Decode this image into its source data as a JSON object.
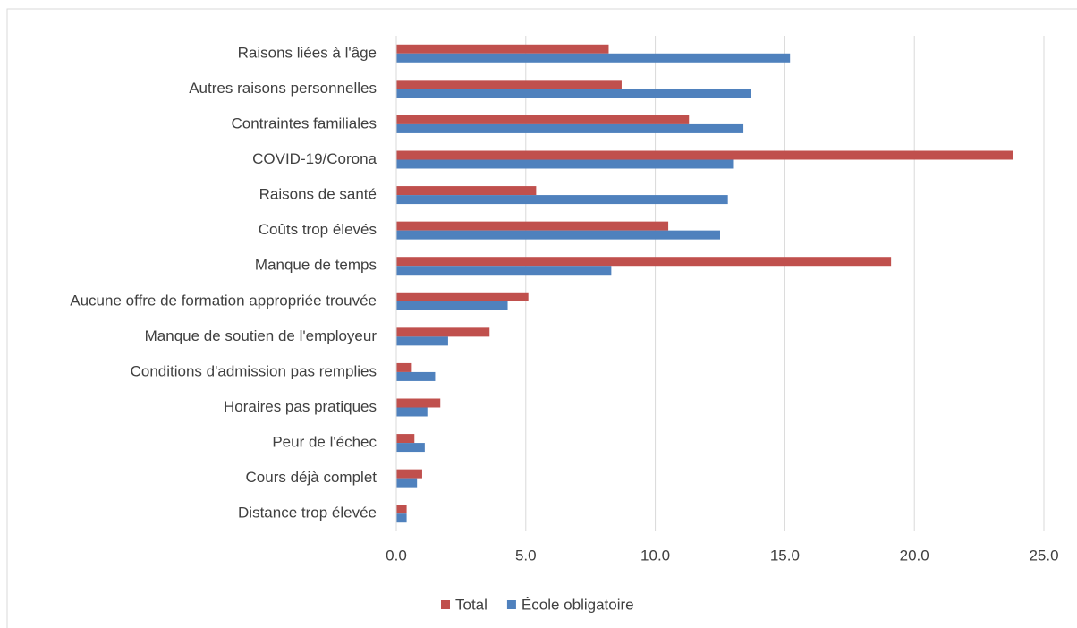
{
  "chart_data": {
    "type": "hbar",
    "categories": [
      "Raisons liées à l'âge",
      "Autres raisons personnelles",
      "Contraintes familiales",
      "COVID-19/Corona",
      "Raisons de santé",
      "Coûts trop élevés",
      "Manque de temps",
      "Aucune offre de formation appropriée trouvée",
      "Manque de soutien de l'employeur",
      "Conditions d'admission pas remplies",
      "Horaires pas pratiques",
      "Peur de l'échec",
      "Cours déjà complet",
      "Distance trop élevée"
    ],
    "series": [
      {
        "name": "Total",
        "color": "#c0504d",
        "values": [
          8.2,
          8.7,
          11.3,
          23.8,
          5.4,
          10.5,
          19.1,
          5.1,
          3.6,
          0.6,
          1.7,
          0.7,
          1.0,
          0.4
        ]
      },
      {
        "name": "École obligatoire",
        "color": "#4f81bd",
        "values": [
          15.2,
          13.7,
          13.4,
          13.0,
          12.8,
          12.5,
          8.3,
          4.3,
          2.0,
          1.5,
          1.2,
          1.1,
          0.8,
          0.4
        ]
      }
    ],
    "xlim": [
      0,
      25
    ],
    "xticks": [
      {
        "value": 0,
        "label": "0.0"
      },
      {
        "value": 5,
        "label": "5.0"
      },
      {
        "value": 10,
        "label": "10.0"
      },
      {
        "value": 15,
        "label": "15.0"
      },
      {
        "value": 20,
        "label": "20.0"
      },
      {
        "value": 25,
        "label": "25.0"
      }
    ],
    "grid": true,
    "legend": "bottom"
  }
}
